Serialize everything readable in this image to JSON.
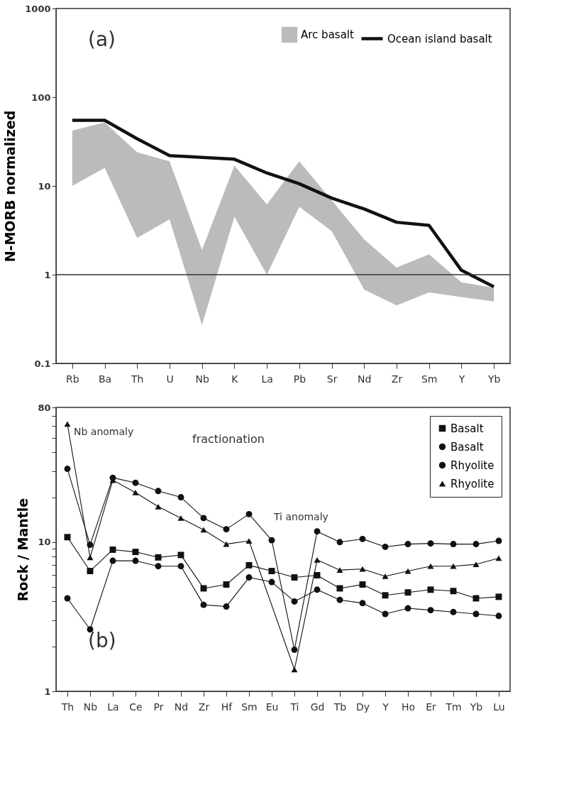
{
  "chart_data": [
    {
      "type": "line",
      "ylabel": "N-MORB normalized",
      "log": "y",
      "ylim": [
        0.1,
        1000
      ],
      "yticks": [
        0.1,
        1,
        10,
        100,
        1000
      ],
      "legend": "top right",
      "categories": [
        "Rb",
        "Ba",
        "Th",
        "U",
        "Nb",
        "K",
        "La",
        "Pb",
        "Sr",
        "Nd",
        "Zr",
        "Sm",
        "Y",
        "Yb"
      ],
      "series": [
        {
          "name": "Arc basalt",
          "type": "area",
          "color": "#b4b4b4",
          "values": [
            null,
            null,
            null,
            null,
            null,
            null,
            null,
            null,
            null,
            null,
            null,
            null,
            null,
            null
          ],
          "lower": [
            10,
            16,
            2.6,
            4.2,
            0.27,
            4.5,
            1.0,
            5.8,
            3.1,
            0.68,
            0.45,
            0.63,
            0.56,
            0.5
          ],
          "upper": [
            42,
            52,
            24,
            19,
            1.9,
            17,
            6.2,
            19,
            6.9,
            2.5,
            1.2,
            1.7,
            0.82,
            0.71
          ]
        },
        {
          "name": "Ocean island basalt",
          "type": "line",
          "color": "#111111",
          "values": [
            55,
            55,
            34,
            22,
            21,
            20,
            14,
            10.6,
            7.3,
            5.5,
            3.9,
            3.6,
            1.12,
            0.73
          ]
        }
      ],
      "ref_lines": [
        {
          "axis": "y",
          "value": 1,
          "color": "#333333"
        }
      ],
      "annotations": [
        "(a)"
      ]
    },
    {
      "type": "line",
      "ylabel": "Rock / Mantle",
      "log": "y",
      "ylim": [
        1,
        80
      ],
      "legend": "top right",
      "yticks": [
        1,
        {
          "value": 2,
          "label": null
        },
        {
          "value": 3,
          "label": null
        },
        {
          "value": 4,
          "label": null
        },
        {
          "value": 5,
          "label": null
        },
        {
          "value": 6,
          "label": null
        },
        {
          "value": 7,
          "label": null
        },
        {
          "value": 8,
          "label": null
        },
        {
          "value": 9,
          "label": null
        },
        10,
        {
          "value": 20,
          "label": null
        },
        {
          "value": 30,
          "label": null
        },
        {
          "value": 40,
          "label": null
        },
        {
          "value": 50,
          "label": null
        },
        {
          "value": 60,
          "label": null
        },
        {
          "value": 70,
          "label": null
        },
        80
      ],
      "categories": [
        "Th",
        "Nb",
        "La",
        "Ce",
        "Pr",
        "Nd",
        "Zr",
        "Hf",
        "Sm",
        "Eu",
        "Ti",
        "Gd",
        "Tb",
        "Dy",
        "Y",
        "Ho",
        "Er",
        "Tm",
        "Yb",
        "Lu"
      ],
      "series": [
        {
          "name": "Basalt",
          "color": "#111111",
          "marker": "square",
          "values": [
            10.8,
            6.4,
            8.9,
            8.6,
            7.9,
            8.2,
            4.9,
            5.2,
            7.0,
            6.4,
            5.8,
            6.0,
            4.9,
            5.2,
            4.4,
            4.6,
            4.8,
            4.7,
            4.2,
            4.3
          ]
        },
        {
          "name": "Basalt",
          "color": "#111111",
          "marker": "circle",
          "values": [
            4.2,
            2.6,
            7.5,
            7.5,
            6.9,
            6.9,
            3.8,
            3.7,
            5.8,
            5.4,
            4.0,
            4.8,
            4.1,
            3.9,
            3.3,
            3.6,
            3.5,
            3.4,
            3.3,
            3.2
          ]
        },
        {
          "name": "Rhyolite",
          "color": "#111111",
          "marker": "circle",
          "values": [
            31,
            9.6,
            27,
            25,
            22,
            20,
            14.5,
            12.2,
            15.4,
            10.3,
            1.9,
            11.8,
            10.0,
            10.5,
            9.3,
            9.7,
            9.8,
            9.7,
            9.7,
            10.2
          ]
        },
        {
          "name": "Rhyolite",
          "color": "#111111",
          "marker": "triangle",
          "values": [
            62,
            7.9,
            26,
            21.5,
            17.3,
            14.5,
            12.1,
            9.7,
            10.2,
            null,
            1.4,
            7.6,
            6.5,
            6.6,
            5.9,
            6.4,
            6.9,
            6.9,
            7.1,
            7.8
          ]
        }
      ],
      "annotations": [
        "Nb anomaly",
        "fractionation",
        "Ti anomaly",
        "(b)"
      ]
    }
  ]
}
